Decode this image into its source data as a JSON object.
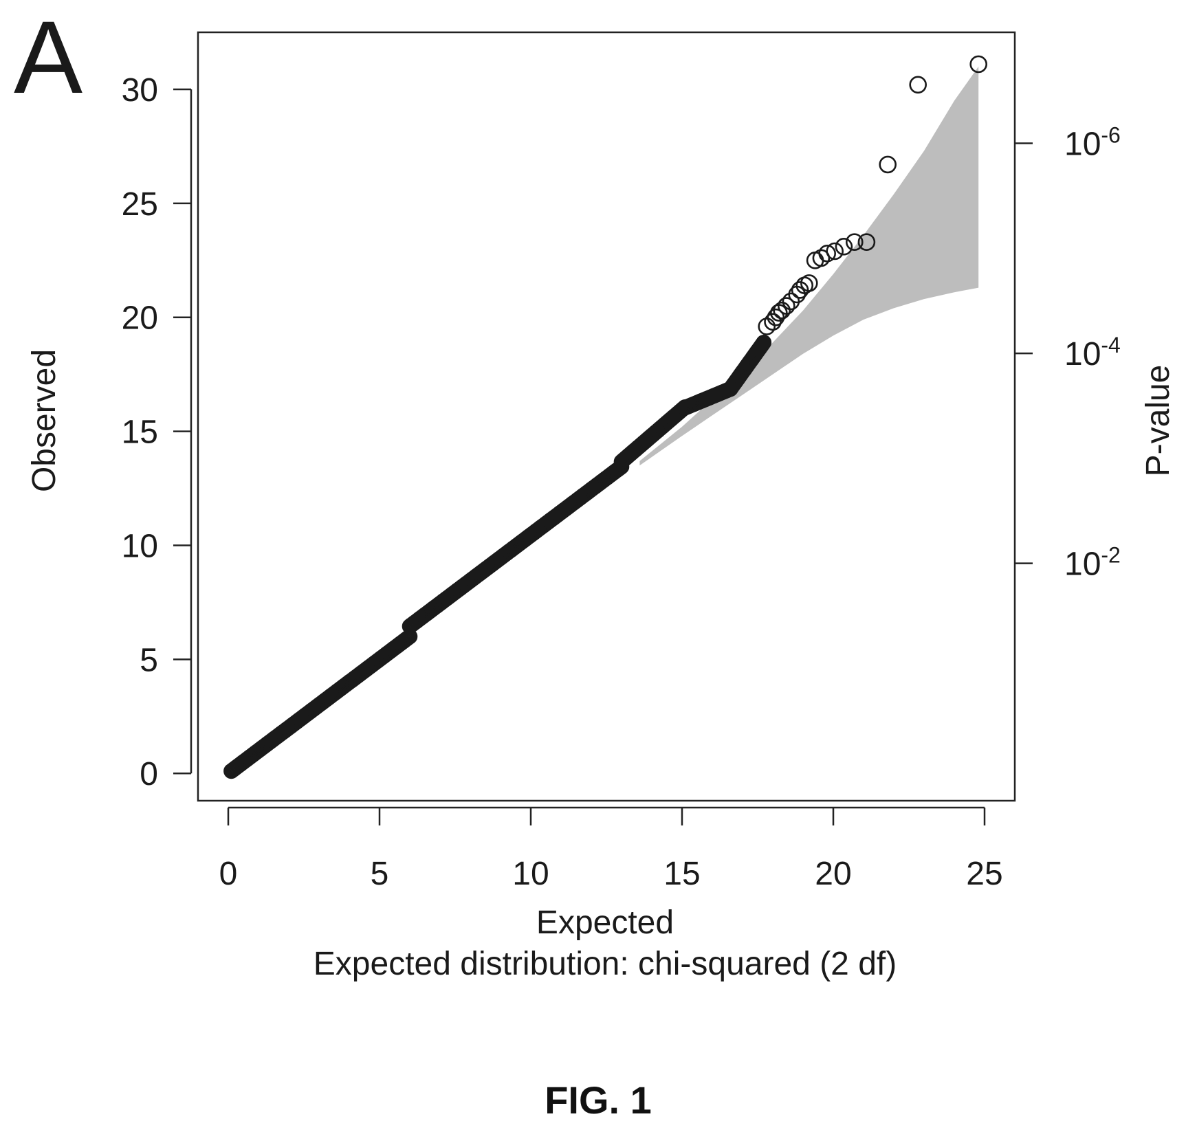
{
  "panel_label": "A",
  "figure_caption": "FIG. 1",
  "chart_data": {
    "type": "scatter",
    "title": "",
    "xlabel": "Expected",
    "subtitle": "Expected distribution: chi-squared (2 df)",
    "ylabel": "Observed",
    "y2label": "P-value",
    "xlim": [
      -1,
      26
    ],
    "ylim": [
      -1.2,
      32.5
    ],
    "x_ticks": [
      0,
      5,
      10,
      15,
      20,
      25
    ],
    "y_ticks": [
      0,
      5,
      10,
      15,
      20,
      25,
      30
    ],
    "y2_ticks": [
      {
        "y": 27.631,
        "base": "10",
        "exp": "-6"
      },
      {
        "y": 18.421,
        "base": "10",
        "exp": "-4"
      },
      {
        "y": 9.21,
        "base": "10",
        "exp": "-2"
      }
    ],
    "grid": false,
    "marker": "open-circle",
    "point_color": "#1a1a1a",
    "band_color": "#bdbdbd",
    "dense_segments": [
      {
        "x0": 0.1,
        "x1": 6.0,
        "n": 140,
        "slope": 1.0,
        "offset": 0.0
      },
      {
        "x0": 6.0,
        "x1": 13.0,
        "n": 170,
        "slope": 1.0,
        "offset": 0.45
      },
      {
        "x0": 13.0,
        "x1": 15.1,
        "n": 60,
        "slope": 1.14,
        "offset": -1.15
      },
      {
        "x0": 15.1,
        "x1": 16.6,
        "n": 40,
        "slope": 0.55,
        "offset": 7.73
      },
      {
        "x0": 16.6,
        "x1": 17.7,
        "n": 40,
        "slope": 1.85,
        "offset": -13.85
      }
    ],
    "points": [
      [
        17.8,
        19.6
      ],
      [
        18.0,
        19.8
      ],
      [
        18.1,
        20.0
      ],
      [
        18.2,
        20.2
      ],
      [
        18.3,
        20.3
      ],
      [
        18.45,
        20.5
      ],
      [
        18.6,
        20.7
      ],
      [
        18.8,
        21.0
      ],
      [
        18.9,
        21.2
      ],
      [
        19.05,
        21.4
      ],
      [
        19.2,
        21.5
      ],
      [
        19.4,
        22.5
      ],
      [
        19.6,
        22.6
      ],
      [
        19.8,
        22.8
      ],
      [
        20.05,
        22.9
      ],
      [
        20.35,
        23.1
      ],
      [
        20.7,
        23.3
      ],
      [
        21.1,
        23.3
      ],
      [
        21.8,
        26.7
      ],
      [
        22.8,
        30.2
      ],
      [
        24.8,
        31.1
      ]
    ],
    "confidence_band": {
      "x": [
        13.6,
        15.0,
        16.0,
        17.0,
        18.0,
        19.0,
        20.0,
        21.0,
        22.0,
        23.0,
        24.0,
        24.8
      ],
      "upper": [
        13.7,
        15.2,
        16.4,
        17.6,
        18.9,
        20.3,
        21.9,
        23.6,
        25.4,
        27.3,
        29.5,
        31.0
      ],
      "lower": [
        13.5,
        14.8,
        15.7,
        16.6,
        17.5,
        18.4,
        19.2,
        19.9,
        20.4,
        20.8,
        21.1,
        21.3
      ]
    }
  }
}
